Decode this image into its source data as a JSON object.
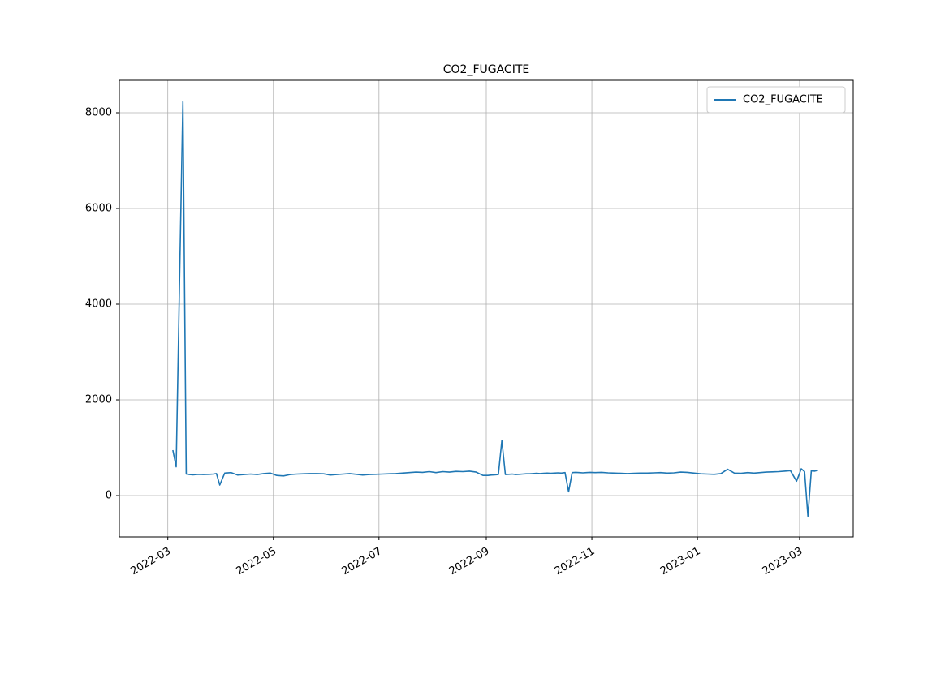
{
  "chart_data": {
    "type": "line",
    "title": "CO2_FUGACITE",
    "x": [
      "2022-03",
      "2022-03",
      "2022-03",
      "2022-03",
      "2022-03",
      "2022-03",
      "2022-03",
      "2022-03",
      "2022-03",
      "2022-03",
      "2022-03",
      "2022-03",
      "2022-03",
      "2022-03",
      "2022-03",
      "2022-03",
      "2022-04",
      "2022-04",
      "2022-04",
      "2022-04",
      "2022-04",
      "2022-04",
      "2022-04",
      "2022-04",
      "2022-05",
      "2022-05",
      "2022-05",
      "2022-05",
      "2022-05",
      "2022-05",
      "2022-05",
      "2022-05",
      "2022-06",
      "2022-06",
      "2022-06",
      "2022-06",
      "2022-06",
      "2022-06",
      "2022-06",
      "2022-06",
      "2022-07",
      "2022-07",
      "2022-07",
      "2022-07",
      "2022-07",
      "2022-07",
      "2022-07",
      "2022-07",
      "2022-08",
      "2022-08",
      "2022-08",
      "2022-08",
      "2022-08",
      "2022-08",
      "2022-08",
      "2022-08",
      "2022-09",
      "2022-09",
      "2022-09",
      "2022-09",
      "2022-09",
      "2022-09",
      "2022-09",
      "2022-09",
      "2022-09",
      "2022-09",
      "2022-09",
      "2022-09",
      "2022-09",
      "2022-09",
      "2022-09",
      "2022-10",
      "2022-10",
      "2022-10",
      "2022-10",
      "2022-10",
      "2022-10",
      "2022-10",
      "2022-10",
      "2022-10",
      "2022-10",
      "2022-10",
      "2022-10",
      "2022-10",
      "2022-10",
      "2022-10",
      "2022-11",
      "2022-11",
      "2022-11",
      "2022-11",
      "2022-11",
      "2022-11",
      "2022-11",
      "2022-11",
      "2022-12",
      "2022-12",
      "2022-12",
      "2022-12",
      "2022-12",
      "2022-12",
      "2022-12",
      "2022-12",
      "2023-01",
      "2023-01",
      "2023-01",
      "2023-01",
      "2023-01",
      "2023-01",
      "2023-01",
      "2023-01",
      "2023-02",
      "2023-02",
      "2023-02",
      "2023-02",
      "2023-02",
      "2023-02",
      "2023-02",
      "2023-02",
      "2023-03",
      "2023-03",
      "2023-03",
      "2023-03",
      "2023-03",
      "2023-03",
      "2023-03",
      "2023-03",
      "2023-03",
      "2023-03",
      "2023-03",
      "2023-03",
      "2023-03",
      "2023-03",
      "2023-03",
      "2023-03"
    ],
    "series": [
      {
        "name": "CO2_FUGACITE",
        "color": "#1f77b4",
        "values": [
          null,
          950,
          600,
          4500,
          8230,
          450,
          440,
          435,
          440,
          445,
          440,
          442,
          445,
          450,
          460,
          220,
          470,
          480,
          430,
          440,
          450,
          440,
          460,
          470,
          420,
          410,
          440,
          450,
          455,
          460,
          460,
          455,
          430,
          440,
          450,
          460,
          445,
          430,
          440,
          445,
          450,
          455,
          460,
          470,
          480,
          490,
          485,
          500,
          480,
          500,
          490,
          505,
          500,
          510,
          490,
          420,
          420,
          430,
          435,
          440,
          1150,
          440,
          445,
          450,
          440,
          445,
          450,
          455,
          455,
          460,
          465,
          460,
          465,
          470,
          465,
          470,
          475,
          470,
          480,
          80,
          480,
          485,
          480,
          475,
          480,
          485,
          480,
          485,
          475,
          470,
          465,
          460,
          465,
          470,
          470,
          475,
          480,
          470,
          475,
          490,
          485,
          470,
          455,
          450,
          445,
          460,
          550,
          470,
          465,
          480,
          470,
          480,
          490,
          495,
          500,
          510,
          520,
          300,
          560,
          500,
          -430,
          520,
          510,
          530,
          null,
          null,
          null,
          null,
          null,
          null,
          null,
          null,
          null,
          null
        ]
      }
    ],
    "xlim": [
      "2022-02",
      "2023-04"
    ],
    "xticks": [
      "2022-03",
      "2022-05",
      "2022-07",
      "2022-09",
      "2022-11",
      "2023-01",
      "2023-03"
    ],
    "ylim": [
      -864,
      8678
    ],
    "yticks": [
      0,
      2000,
      4000,
      6000,
      8000
    ],
    "grid": true,
    "legend": "upper right"
  }
}
